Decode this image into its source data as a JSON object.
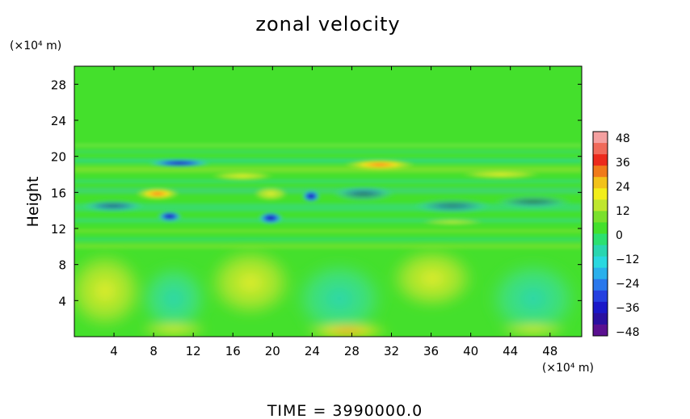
{
  "chart_data": {
    "type": "heatmap",
    "title": "zonal velocity",
    "ylabel": "Height",
    "x_unit": "(×10⁴ m)",
    "y_unit": "(×10⁴ m)",
    "x_ticks": [
      "4",
      "8",
      "12",
      "16",
      "20",
      "24",
      "28",
      "32",
      "36",
      "40",
      "44",
      "48"
    ],
    "y_ticks": [
      "4",
      "8",
      "12",
      "16",
      "20",
      "24",
      "28"
    ],
    "xlim": [
      0,
      51.2
    ],
    "ylim": [
      0,
      30
    ],
    "grid": false,
    "colorbar": {
      "ticks": [
        "48",
        "36",
        "24",
        "12",
        "0",
        "−12",
        "−24",
        "−36",
        "−48"
      ],
      "range": [
        -48,
        48
      ]
    },
    "features": [
      {
        "x": 10.5,
        "y": 19.3,
        "value": -40
      },
      {
        "x": 30.5,
        "y": 19.0,
        "value": 26
      },
      {
        "x": 19.8,
        "y": 13.0,
        "value": -42
      },
      {
        "x": 23.5,
        "y": 15.5,
        "value": -34
      },
      {
        "x": 10.0,
        "y": 13.5,
        "value": -28
      },
      {
        "x": 8.0,
        "y": 15.8,
        "value": 14
      },
      {
        "x": 27.5,
        "y": 0.6,
        "value": 16
      },
      {
        "x": 6.0,
        "y": 6.5,
        "value": 8
      },
      {
        "x": 35.0,
        "y": 7.0,
        "value": 8
      }
    ]
  },
  "footer": {
    "time_label": "TIME  =  3990000.0"
  }
}
